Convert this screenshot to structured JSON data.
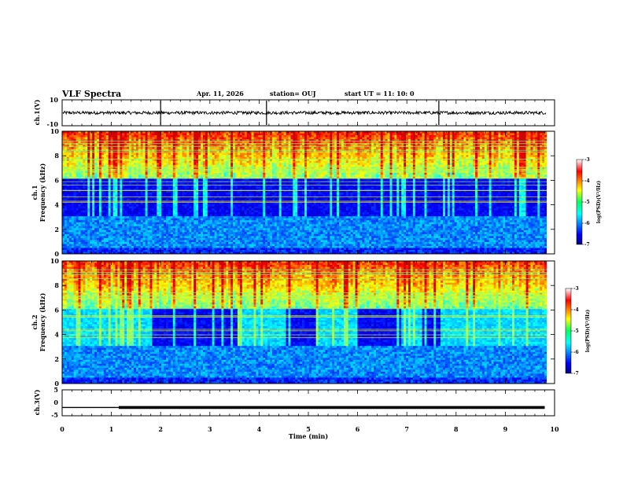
{
  "header": {
    "title": "VLF Spectra",
    "date": "Apr. 11, 2026",
    "station": "station= OUJ",
    "start": "start  UT  =   11: 10: 0"
  },
  "chart_data": [
    {
      "type": "line",
      "name": "ch1-waveform",
      "ylabel": "ch.1(V)",
      "ylim": [
        -10,
        10
      ],
      "y_tick_labels": [
        "10",
        "-10"
      ],
      "approx_level": 0
    },
    {
      "type": "heatmap",
      "name": "ch1-spectrogram",
      "ylabel_line1": "ch.1",
      "ylabel_line2": "Frequency (kHz)",
      "ylim": [
        0,
        10
      ],
      "y_tick_labels": [
        "0",
        "2",
        "4",
        "6",
        "8",
        "10"
      ],
      "colorbar": {
        "label": "log(PSD)(V²/Hz)",
        "ticks": [
          "-3",
          "-4",
          "-5",
          "-6",
          "-7"
        ],
        "range": [
          -7,
          -3
        ]
      }
    },
    {
      "type": "heatmap",
      "name": "ch2-spectrogram",
      "ylabel_line1": "ch.2",
      "ylabel_line2": "Frequency (kHz)",
      "ylim": [
        0,
        10
      ],
      "y_tick_labels": [
        "0",
        "2",
        "4",
        "6",
        "8",
        "10"
      ],
      "colorbar": {
        "label": "log(PSD)(V²/Hz)",
        "ticks": [
          "-3",
          "-4",
          "-5",
          "-6",
          "-7"
        ],
        "range": [
          -7,
          -3
        ]
      }
    },
    {
      "type": "line",
      "name": "ch3-voltage",
      "ylabel": "ch.3(V)",
      "ylim": [
        -5,
        5
      ],
      "y_tick_labels": [
        "5",
        "0",
        "-5"
      ],
      "x": [
        0,
        1.15,
        1.15,
        9.8
      ],
      "y": [
        -1.8,
        -1.8,
        -1.8,
        -1.8
      ]
    }
  ],
  "x_axis": {
    "label": "Time (min)",
    "range": [
      0,
      10
    ],
    "tick_labels": [
      "0",
      "1",
      "2",
      "3",
      "4",
      "5",
      "6",
      "7",
      "8",
      "9",
      "10"
    ]
  }
}
